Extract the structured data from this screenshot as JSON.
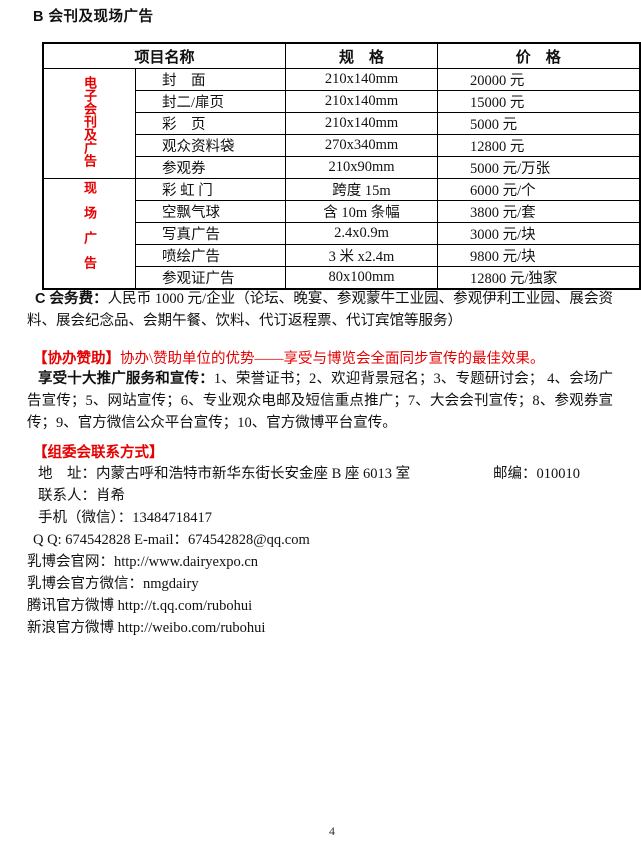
{
  "page": {
    "title": "B 会刊及现场广告",
    "page_number": "4"
  },
  "colors": {
    "accent_red": "#e60000",
    "text": "#111111",
    "table_border": "#000000"
  },
  "table": {
    "headers": {
      "name": "项目名称",
      "spec": "规　格",
      "price": "价　格"
    },
    "groups": [
      {
        "label": "电子会刊及广告",
        "rows": [
          {
            "name": "封　面",
            "spec": "210x140mm",
            "price": "20000 元"
          },
          {
            "name": "封二/扉页",
            "spec": "210x140mm",
            "price": "15000 元"
          },
          {
            "name": "彩　页",
            "spec": "210x140mm",
            "price": "5000 元"
          },
          {
            "name": "观众资料袋",
            "spec": "270x340mm",
            "price": "12800 元"
          },
          {
            "name": "参观券",
            "spec": "210x90mm",
            "price": "5000 元/万张"
          }
        ]
      },
      {
        "label": "现场广告",
        "rows": [
          {
            "name": "彩 虹 门",
            "spec": "跨度 15m",
            "price": "6000 元/个"
          },
          {
            "name": "空飘气球",
            "spec": "含 10m 条幅",
            "price": "3800 元/套"
          },
          {
            "name": "写真广告",
            "spec": "2.4x0.9m",
            "price": "3000 元/块"
          },
          {
            "name": "喷绘广告",
            "spec": "3 米 x2.4m",
            "price": "9800 元/块"
          },
          {
            "name": "参观证广告",
            "spec": "80x100mm",
            "price": "12800 元/独家"
          }
        ]
      }
    ]
  },
  "sections": {
    "fee": {
      "lead": "C 会务费：",
      "body": "人民币 1000 元/企业（论坛、晚宴、参观蒙牛工业园、参观伊利工业园、展会资料、展会纪念品、会期午餐、饮料、代订返程票、代订宾馆等服务）"
    },
    "sponsor": {
      "lead": "【协办赞助】",
      "body": "协办\\赞助单位的优势——享受与博览会全面同步宣传的最佳效果。"
    },
    "promotion": {
      "lead": "享受十大推广服务和宣传：",
      "body": "1、荣誉证书；2、欢迎背景冠名；3、专题研讨会； 4、会场广告宣传；5、网站宣传；6、专业观众电邮及短信重点推广；7、大会会刊宣传；8、参观券宣传；9、官方微信公众平台宣传；10、官方微博平台宣传。"
    },
    "contact": {
      "heading": "【组委会联系方式】",
      "address_line": "地　址：内蒙古呼和浩特市新华东街长安金座 B 座 6013 室",
      "postcode": "邮编：010010",
      "lines": [
        "联系人：肖希",
        "手机（微信）：13484718417",
        "Q Q: 674542828 E-mail：674542828@qq.com",
        "乳博会官网：http://www.dairyexpo.cn",
        "乳博会官方微信：nmgdairy",
        "腾讯官方微博 http://t.qq.com/rubohui",
        "新浪官方微博 http://weibo.com/rubohui"
      ]
    }
  }
}
